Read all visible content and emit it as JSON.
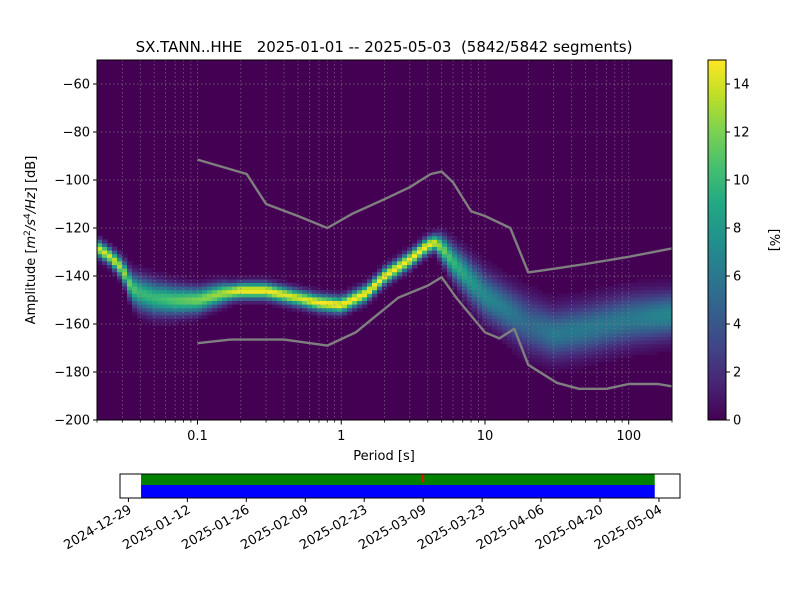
{
  "chart_data": [
    {
      "type": "heatmap",
      "title": "SX.TANN..HHE   2025-01-01 -- 2025-05-03  (5842/5842 segments)",
      "xlabel": "Period [s]",
      "ylabel": "Amplitude [m²/s⁴/Hz] [dB]",
      "ylabel_parts": {
        "pre": "Amplitude [",
        "m": "m",
        "two": "2",
        "slash": "/s",
        "four": "4",
        "hz": "/Hz",
        "post": "] [dB]"
      },
      "x_scale": "log",
      "xlim": [
        0.02,
        200
      ],
      "ylim": [
        -200,
        -50
      ],
      "x_ticks": [
        0.1,
        1,
        10,
        100
      ],
      "x_tick_labels": [
        "0.1",
        "1",
        "10",
        "100"
      ],
      "y_ticks": [
        -60,
        -80,
        -100,
        -120,
        -140,
        -160,
        -180,
        -200
      ],
      "y_tick_labels": [
        "−60",
        "−80",
        "−100",
        "−120",
        "−140",
        "−160",
        "−180",
        "−200"
      ],
      "grid": true,
      "colormap": "viridis",
      "colorbar": {
        "label": "[%]",
        "range": [
          0,
          15
        ],
        "ticks": [
          0,
          2,
          4,
          6,
          8,
          10,
          12,
          14
        ],
        "tick_labels": [
          "0",
          "2",
          "4",
          "6",
          "8",
          "10",
          "12",
          "14"
        ]
      },
      "density_ridge": {
        "period": [
          0.02,
          0.025,
          0.03,
          0.035,
          0.04,
          0.05,
          0.07,
          0.1,
          0.15,
          0.2,
          0.3,
          0.5,
          0.7,
          1,
          1.5,
          2,
          3,
          4,
          4.5,
          5,
          6,
          8,
          10,
          15,
          20,
          30,
          50,
          100,
          200
        ],
        "amplitude_db": [
          -128,
          -132,
          -137,
          -145,
          -147,
          -149,
          -150,
          -150,
          -147,
          -146,
          -146,
          -149,
          -151,
          -152,
          -147,
          -140,
          -133,
          -127,
          -126,
          -128,
          -134,
          -142,
          -148,
          -155,
          -160,
          -164,
          -162,
          -158,
          -156
        ],
        "peak_percent": [
          14,
          14,
          13,
          11,
          10,
          10,
          11,
          12,
          13,
          15,
          15,
          14,
          15,
          15,
          15,
          15,
          15,
          15,
          14,
          12,
          10,
          8,
          7,
          6,
          5,
          6,
          6,
          6,
          7
        ]
      },
      "series": [
        {
          "x": [
            0.1,
            0.22,
            0.3,
            0.5,
            0.8,
            1.2,
            2,
            3,
            3.6,
            4.2,
            5,
            6,
            8,
            10,
            15,
            20,
            30,
            50,
            100,
            200
          ],
          "y": [
            -91.5,
            -97.5,
            -110,
            -115,
            -120,
            -114,
            -108,
            -103,
            -100,
            -97.5,
            -96.5,
            -101,
            -113,
            -115,
            -120,
            -138.5,
            -137,
            -135,
            -132,
            -128.5
          ]
        },
        {
          "x": [
            0.1,
            0.17,
            0.4,
            0.8,
            1.26,
            2.5,
            4,
            5,
            6.3,
            10,
            12.6,
            16,
            20,
            31.6,
            45,
            70,
            100,
            160,
            200
          ],
          "y": [
            -168,
            -166.5,
            -166.5,
            -169,
            -163.5,
            -149,
            -144,
            -140.5,
            -149,
            -163.5,
            -166,
            -162,
            -177,
            -184.5,
            -187,
            -187,
            -185,
            -185,
            -186
          ]
        }
      ]
    },
    {
      "type": "timeline",
      "x_start": "2024-12-27",
      "x_end": "2025-05-09",
      "data_start": "2025-01-01",
      "data_end": "2025-05-03",
      "marker_date": "2025-03-09",
      "x_tick_labels": [
        "2024-12-29",
        "2025-01-12",
        "2025-01-26",
        "2025-02-09",
        "2025-02-23",
        "2025-03-09",
        "2025-03-23",
        "2025-04-06",
        "2025-04-20",
        "2025-05-04"
      ],
      "colors": {
        "upper": "#008000",
        "lower": "#0000ff",
        "marker": "#ff0000"
      }
    }
  ]
}
